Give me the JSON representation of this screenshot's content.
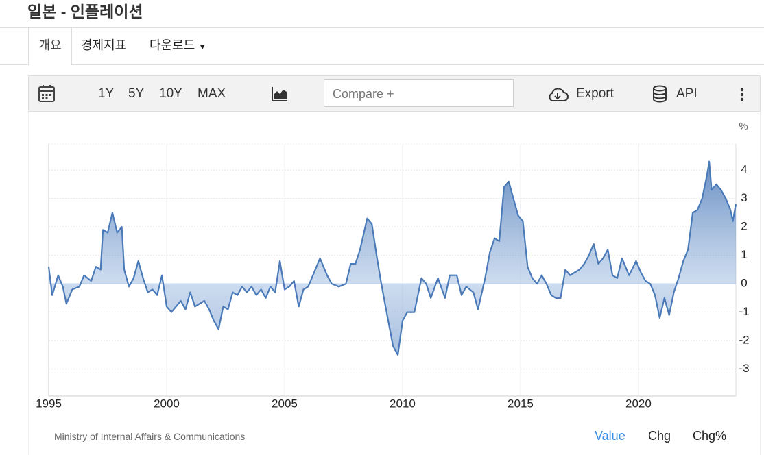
{
  "header": {
    "title": "일본 - 인플레이션"
  },
  "tabs": [
    "개요",
    "경제지표",
    "다운로드"
  ],
  "toolbar": {
    "ranges": [
      "1Y",
      "5Y",
      "10Y",
      "MAX"
    ],
    "compare": "Compare +",
    "export": "Export",
    "api": "API"
  },
  "chart_data": {
    "type": "area",
    "y_unit": "%",
    "color": "#4a7ab8",
    "grid": true,
    "x": [
      1995.0,
      1995.15,
      1995.4,
      1995.6,
      1995.75,
      1996.0,
      1996.3,
      1996.5,
      1996.8,
      1997.0,
      1997.2,
      1997.3,
      1997.5,
      1997.7,
      1997.9,
      1998.1,
      1998.2,
      1998.4,
      1998.6,
      1998.8,
      1999.0,
      1999.2,
      1999.4,
      1999.6,
      1999.8,
      2000.0,
      2000.2,
      2000.4,
      2000.6,
      2000.8,
      2001.0,
      2001.2,
      2001.4,
      2001.6,
      2001.8,
      2002.0,
      2002.2,
      2002.4,
      2002.6,
      2002.8,
      2003.0,
      2003.2,
      2003.4,
      2003.6,
      2003.8,
      2004.0,
      2004.2,
      2004.4,
      2004.6,
      2004.8,
      2005.0,
      2005.2,
      2005.4,
      2005.6,
      2005.8,
      2006.0,
      2006.2,
      2006.5,
      2006.8,
      2007.0,
      2007.3,
      2007.6,
      2007.8,
      2008.0,
      2008.2,
      2008.5,
      2008.7,
      2008.9,
      2009.1,
      2009.3,
      2009.6,
      2009.8,
      2010.0,
      2010.2,
      2010.5,
      2010.8,
      2011.0,
      2011.2,
      2011.5,
      2011.8,
      2012.0,
      2012.3,
      2012.5,
      2012.7,
      2013.0,
      2013.2,
      2013.5,
      2013.7,
      2013.9,
      2014.1,
      2014.3,
      2014.5,
      2014.7,
      2014.9,
      2015.1,
      2015.3,
      2015.5,
      2015.7,
      2015.9,
      2016.1,
      2016.3,
      2016.5,
      2016.7,
      2016.9,
      2017.1,
      2017.3,
      2017.5,
      2017.7,
      2017.9,
      2018.1,
      2018.3,
      2018.5,
      2018.7,
      2018.9,
      2019.1,
      2019.3,
      2019.6,
      2019.9,
      2020.1,
      2020.3,
      2020.5,
      2020.7,
      2020.9,
      2021.1,
      2021.3,
      2021.5,
      2021.7,
      2021.9,
      2022.1,
      2022.3,
      2022.5,
      2022.7,
      2022.9,
      2023.0,
      2023.1,
      2023.3,
      2023.5,
      2023.7,
      2023.9,
      2024.0,
      2024.13
    ],
    "series": [
      {
        "color": "#4a7ab8",
        "values": [
          0.6,
          -0.4,
          0.3,
          -0.1,
          -0.7,
          -0.2,
          -0.1,
          0.3,
          0.1,
          0.6,
          0.5,
          1.9,
          1.8,
          2.5,
          1.8,
          2.0,
          0.5,
          -0.1,
          0.2,
          0.8,
          0.2,
          -0.3,
          -0.2,
          -0.4,
          0.3,
          -0.8,
          -1.0,
          -0.8,
          -0.6,
          -0.9,
          -0.3,
          -0.8,
          -0.7,
          -0.6,
          -0.9,
          -1.3,
          -1.6,
          -0.8,
          -0.9,
          -0.3,
          -0.4,
          -0.1,
          -0.3,
          -0.1,
          -0.4,
          -0.2,
          -0.5,
          -0.1,
          -0.3,
          0.8,
          -0.2,
          -0.1,
          0.1,
          -0.8,
          -0.2,
          -0.1,
          0.3,
          0.9,
          0.3,
          0.0,
          -0.1,
          0.0,
          0.7,
          0.7,
          1.2,
          2.3,
          2.1,
          1.0,
          0.0,
          -0.9,
          -2.2,
          -2.5,
          -1.3,
          -1.0,
          -1.0,
          0.2,
          0.0,
          -0.5,
          0.2,
          -0.5,
          0.3,
          0.3,
          -0.4,
          -0.1,
          -0.3,
          -0.9,
          0.2,
          1.1,
          1.6,
          1.5,
          3.4,
          3.6,
          3.0,
          2.4,
          2.2,
          0.6,
          0.2,
          0.0,
          0.3,
          0.0,
          -0.4,
          -0.5,
          -0.5,
          0.5,
          0.3,
          0.4,
          0.5,
          0.7,
          1.0,
          1.4,
          0.7,
          0.9,
          1.2,
          0.3,
          0.2,
          0.9,
          0.3,
          0.8,
          0.4,
          0.1,
          0.0,
          -0.4,
          -1.2,
          -0.5,
          -1.1,
          -0.3,
          0.2,
          0.8,
          1.2,
          2.5,
          2.6,
          3.0,
          3.8,
          4.3,
          3.3,
          3.5,
          3.3,
          3.0,
          2.6,
          2.2,
          2.8
        ]
      }
    ],
    "xlim": [
      1995,
      2024.13
    ],
    "xticks": [
      1995,
      2000,
      2005,
      2010,
      2015,
      2020
    ],
    "ylim": [
      -3.95,
      4.92
    ],
    "yticks": [
      -3,
      -2,
      -1,
      0,
      1,
      2,
      3,
      4
    ]
  },
  "footer": {
    "source": "Ministry of Internal Affairs & Communications",
    "modes": [
      "Value",
      "Chg",
      "Chg%"
    ]
  }
}
